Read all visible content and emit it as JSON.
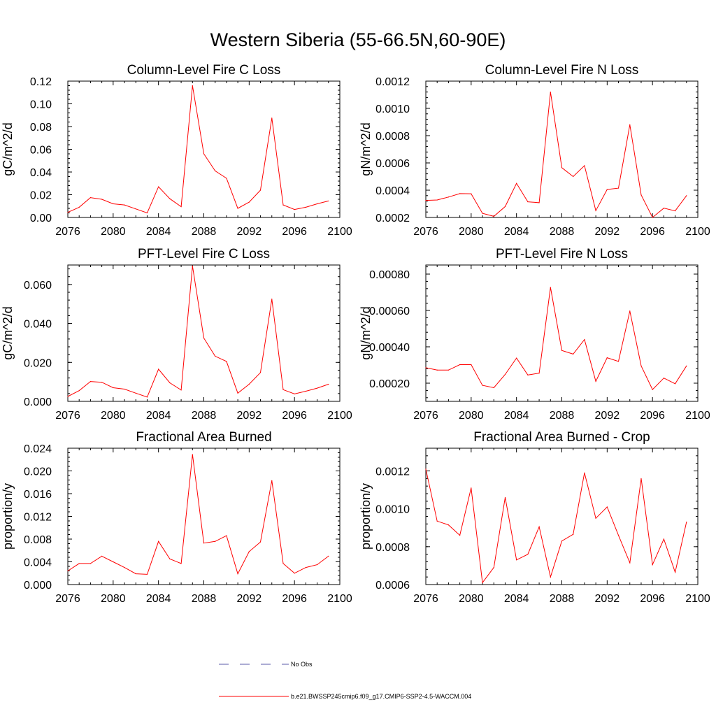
{
  "figure": {
    "title": "Western Siberia (55-66.5N,60-90E)"
  },
  "legend": {
    "items": [
      {
        "label": "No Obs",
        "color": "#5a5aa8",
        "style": "dashed"
      },
      {
        "label": "b.e21.BWSSP245cmip6.f09_g17.CMIP6-SSP2-4.5-WACCM.004",
        "color": "#ff0000",
        "style": "solid"
      }
    ]
  },
  "chart_data": [
    {
      "type": "line",
      "title": "Column-Level Fire C Loss",
      "ylabel": "gC/m^2/d",
      "xlim": [
        2076,
        2100
      ],
      "ylim": [
        0,
        0.12
      ],
      "xticks": [
        2076,
        2080,
        2084,
        2088,
        2092,
        2096,
        2100
      ],
      "yticks": [
        "0.00",
        "0.02",
        "0.04",
        "0.06",
        "0.08",
        "0.10",
        "0.12"
      ],
      "color": "#ff0000",
      "x": [
        2076,
        2077,
        2078,
        2079,
        2080,
        2081,
        2082,
        2083,
        2084,
        2085,
        2086,
        2087,
        2088,
        2089,
        2090,
        2091,
        2092,
        2093,
        2094,
        2095,
        2096,
        2097,
        2098,
        2099
      ],
      "values": [
        0.0045,
        0.009,
        0.0175,
        0.016,
        0.012,
        0.011,
        0.0075,
        0.004,
        0.027,
        0.0165,
        0.0095,
        0.116,
        0.056,
        0.041,
        0.0345,
        0.008,
        0.0135,
        0.024,
        0.0875,
        0.011,
        0.007,
        0.009,
        0.012,
        0.0145
      ]
    },
    {
      "type": "line",
      "title": "Column-Level Fire N Loss",
      "ylabel": "gN/m^2/d",
      "xlim": [
        2076,
        2100
      ],
      "ylim": [
        0.0002,
        0.0012
      ],
      "xticks": [
        2076,
        2080,
        2084,
        2088,
        2092,
        2096,
        2100
      ],
      "yticks": [
        "0.0002",
        "0.0004",
        "0.0006",
        "0.0008",
        "0.0010",
        "0.0012"
      ],
      "color": "#ff0000",
      "x": [
        2076,
        2077,
        2078,
        2079,
        2080,
        2081,
        2082,
        2083,
        2084,
        2085,
        2086,
        2087,
        2088,
        2089,
        2090,
        2091,
        2092,
        2093,
        2094,
        2095,
        2096,
        2097,
        2098,
        2099
      ],
      "values": [
        0.000325,
        0.000328,
        0.00035,
        0.000375,
        0.000374,
        0.00023,
        0.000208,
        0.00028,
        0.00045,
        0.000315,
        0.000308,
        0.00112,
        0.000565,
        0.0005,
        0.00058,
        0.00025,
        0.000405,
        0.000415,
        0.00088,
        0.000365,
        0.0002,
        0.000268,
        0.000248,
        0.00036
      ]
    },
    {
      "type": "line",
      "title": "PFT-Level Fire C Loss",
      "ylabel": "gC/m^2/d",
      "xlim": [
        2076,
        2100
      ],
      "ylim": [
        0,
        0.07
      ],
      "xticks": [
        2076,
        2080,
        2084,
        2088,
        2092,
        2096,
        2100
      ],
      "yticks": [
        "0.000",
        "0.020",
        "0.040",
        "0.060"
      ],
      "ytick_values": [
        0,
        0.02,
        0.04,
        0.06
      ],
      "color": "#ff0000",
      "x": [
        2076,
        2077,
        2078,
        2079,
        2080,
        2081,
        2082,
        2083,
        2084,
        2085,
        2086,
        2087,
        2088,
        2089,
        2090,
        2091,
        2092,
        2093,
        2094,
        2095,
        2096,
        2097,
        2098,
        2099
      ],
      "values": [
        0.0025,
        0.0055,
        0.0102,
        0.0098,
        0.007,
        0.0063,
        0.0042,
        0.0022,
        0.0165,
        0.0095,
        0.0058,
        0.0695,
        0.0325,
        0.0232,
        0.0205,
        0.0042,
        0.0088,
        0.0148,
        0.0525,
        0.006,
        0.0038,
        0.0052,
        0.0068,
        0.0088
      ]
    },
    {
      "type": "line",
      "title": "PFT-Level Fire N Loss",
      "ylabel": "gN/m^2/d",
      "xlim": [
        2076,
        2100
      ],
      "ylim": [
        0.0001,
        0.00085
      ],
      "xticks": [
        2076,
        2080,
        2084,
        2088,
        2092,
        2096,
        2100
      ],
      "yticks": [
        "0.00020",
        "0.00040",
        "0.00060",
        "0.00080"
      ],
      "ytick_values": [
        0.0002,
        0.0004,
        0.0006,
        0.0008
      ],
      "color": "#ff0000",
      "x": [
        2076,
        2077,
        2078,
        2079,
        2080,
        2081,
        2082,
        2083,
        2084,
        2085,
        2086,
        2087,
        2088,
        2089,
        2090,
        2091,
        2092,
        2093,
        2094,
        2095,
        2096,
        2097,
        2098,
        2099
      ],
      "values": [
        0.000285,
        0.000272,
        0.000272,
        0.000302,
        0.000302,
        0.000188,
        0.000175,
        0.000248,
        0.000338,
        0.000245,
        0.000255,
        0.000727,
        0.00038,
        0.00036,
        0.00044,
        0.00021,
        0.00034,
        0.00032,
        0.000597,
        0.000295,
        0.000165,
        0.000228,
        0.000197,
        0.000295
      ]
    },
    {
      "type": "line",
      "title": "Fractional Area Burned",
      "ylabel": "proportion/y",
      "xlim": [
        2076,
        2100
      ],
      "ylim": [
        0,
        0.024
      ],
      "xticks": [
        2076,
        2080,
        2084,
        2088,
        2092,
        2096,
        2100
      ],
      "yticks": [
        "0.000",
        "0.004",
        "0.008",
        "0.012",
        "0.016",
        "0.020",
        "0.024"
      ],
      "color": "#ff0000",
      "x": [
        2076,
        2077,
        2078,
        2079,
        2080,
        2081,
        2082,
        2083,
        2084,
        2085,
        2086,
        2087,
        2088,
        2089,
        2090,
        2091,
        2092,
        2093,
        2094,
        2095,
        2096,
        2097,
        2098,
        2099
      ],
      "values": [
        0.0024,
        0.0037,
        0.0037,
        0.005,
        0.004,
        0.003,
        0.0019,
        0.0018,
        0.0076,
        0.0045,
        0.0037,
        0.0229,
        0.0073,
        0.0076,
        0.0086,
        0.0019,
        0.0058,
        0.0075,
        0.0183,
        0.0037,
        0.002,
        0.003,
        0.0035,
        0.005
      ]
    },
    {
      "type": "line",
      "title": "Fractional Area Burned - Crop",
      "ylabel": "proportion/y",
      "xlim": [
        2076,
        2100
      ],
      "ylim": [
        0.0006,
        0.00132
      ],
      "xticks": [
        2076,
        2080,
        2084,
        2088,
        2092,
        2096,
        2100
      ],
      "yticks": [
        "0.0006",
        "0.0008",
        "0.0010",
        "0.0012"
      ],
      "ytick_values": [
        0.0006,
        0.0008,
        0.001,
        0.0012
      ],
      "color": "#ff0000",
      "x": [
        2076,
        2077,
        2078,
        2079,
        2080,
        2081,
        2082,
        2083,
        2084,
        2085,
        2086,
        2087,
        2088,
        2089,
        2090,
        2091,
        2092,
        2093,
        2094,
        2095,
        2096,
        2097,
        2098,
        2099
      ],
      "values": [
        0.00121,
        0.000935,
        0.000915,
        0.00086,
        0.00111,
        0.00061,
        0.00069,
        0.00106,
        0.00073,
        0.00076,
        0.000905,
        0.00064,
        0.00083,
        0.000865,
        0.00119,
        0.00095,
        0.00101,
        0.00086,
        0.000715,
        0.00116,
        0.000705,
        0.00084,
        0.000665,
        0.00093
      ]
    }
  ]
}
